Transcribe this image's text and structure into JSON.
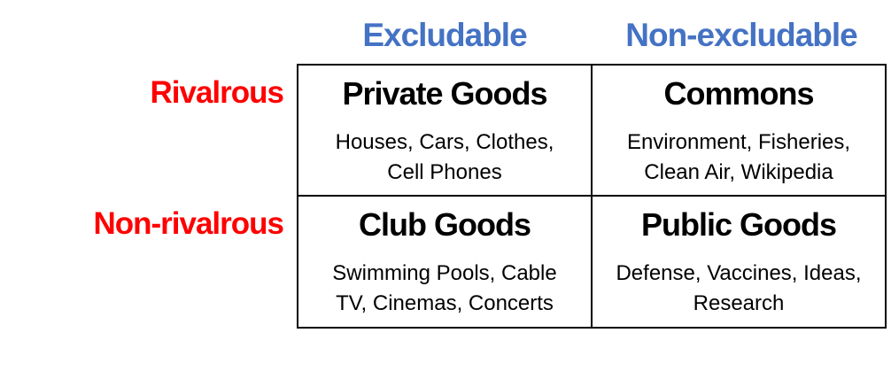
{
  "colors": {
    "column_header": "#4472c4",
    "row_header": "#ff0000",
    "text": "#000000",
    "border": "#000000",
    "background": "#ffffff"
  },
  "columns": {
    "excludable": "Excludable",
    "non_excludable": "Non-excludable"
  },
  "rows": {
    "rivalrous": "Rivalrous",
    "non_rivalrous": "Non-rivalrous"
  },
  "cells": {
    "private_goods": {
      "title": "Private Goods",
      "examples": "Houses, Cars, Clothes, Cell Phones"
    },
    "commons": {
      "title": "Commons",
      "examples": "Environment, Fisheries, Clean Air, Wikipedia"
    },
    "club_goods": {
      "title": "Club Goods",
      "examples": "Swimming Pools, Cable TV, Cinemas, Concerts"
    },
    "public_goods": {
      "title": "Public Goods",
      "examples": "Defense, Vaccines, Ideas, Research"
    }
  }
}
